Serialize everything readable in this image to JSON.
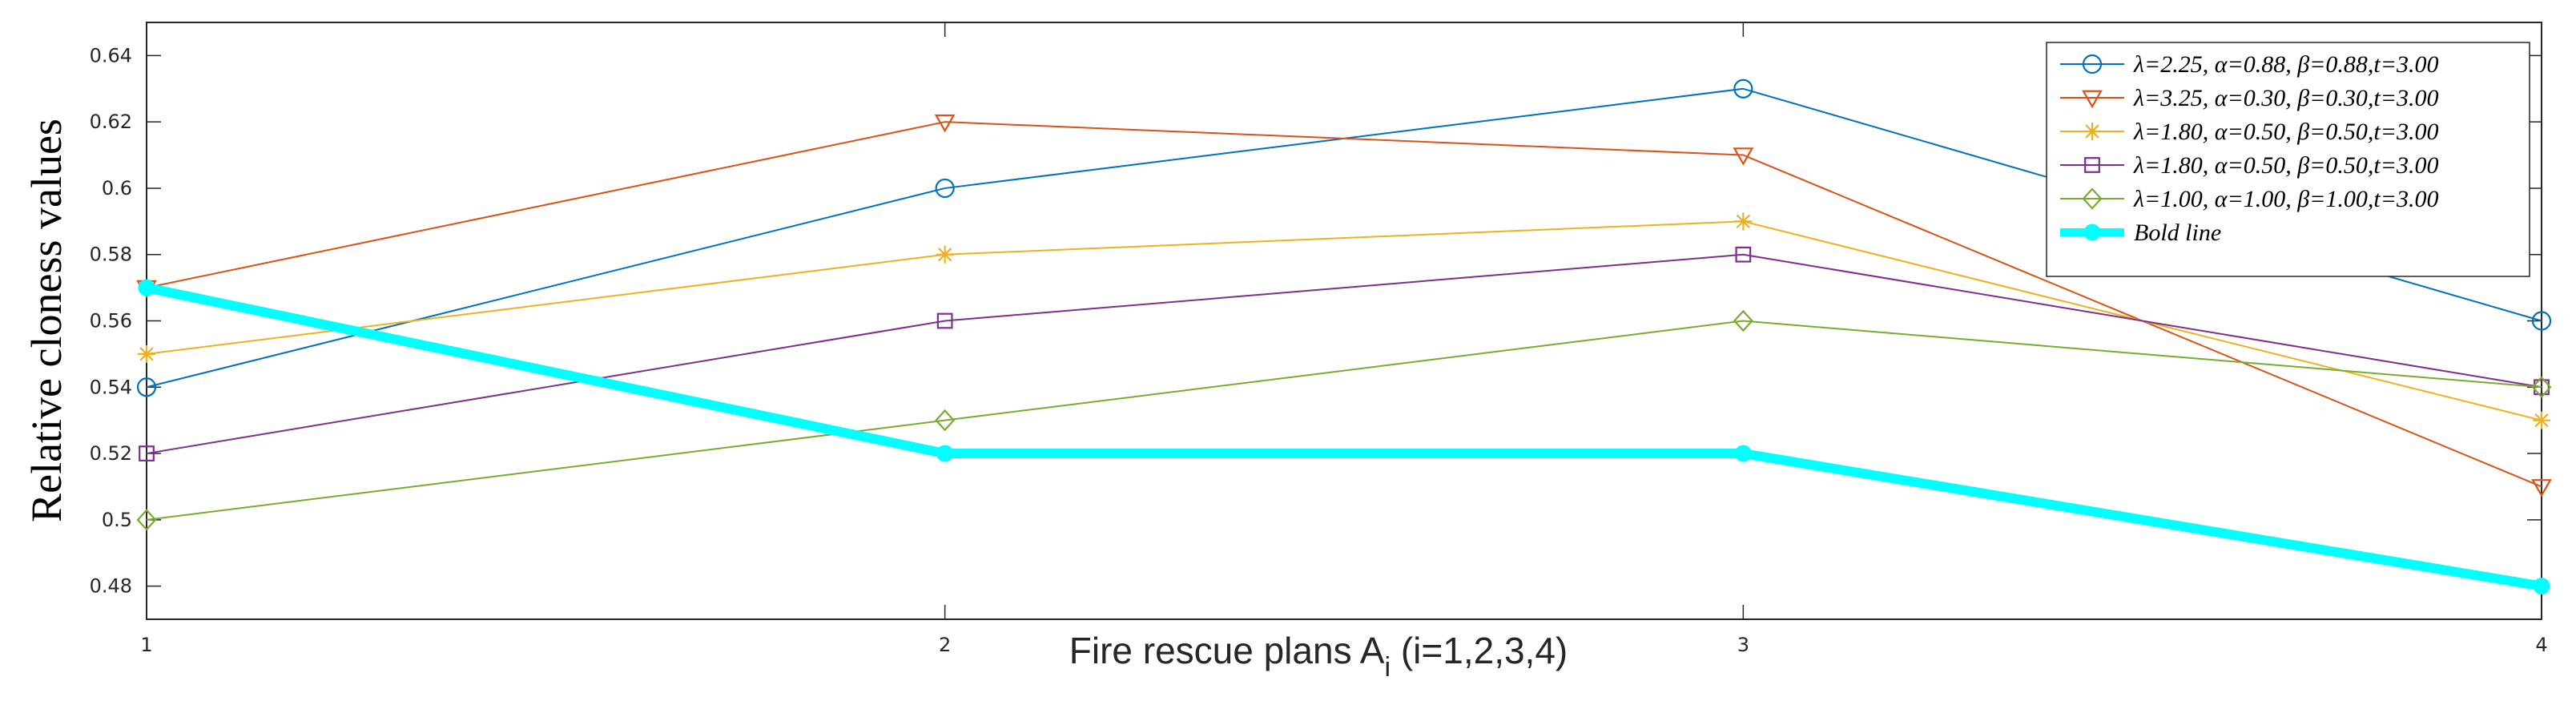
{
  "chart_data": {
    "type": "line",
    "x": [
      1,
      2,
      3,
      4
    ],
    "x_tick_labels": [
      "1",
      "2",
      "3",
      "4"
    ],
    "xlabel": "Fire rescue plans A",
    "xlabel_subscript": "i",
    "xlabel_suffix": " (i=1,2,3,4)",
    "ylabel": "Relative cloness values",
    "xlim": [
      1,
      4
    ],
    "ylim": [
      0.47,
      0.65
    ],
    "y_ticks": [
      0.48,
      0.5,
      0.52,
      0.54,
      0.56,
      0.58,
      0.6,
      0.62,
      0.64
    ],
    "y_tick_labels": [
      "0.48",
      "0.5",
      "0.52",
      "0.54",
      "0.56",
      "0.58",
      "0.6",
      "0.62",
      "0.64"
    ],
    "grid": false,
    "legend_position": "top-right",
    "series": [
      {
        "name": "λ=2.25, α=0.88, β=0.88,t=3.00",
        "values": [
          0.54,
          0.6,
          0.63,
          0.56
        ],
        "color": "#0072BD",
        "marker": "circle",
        "width": 2
      },
      {
        "name": "λ=3.25, α=0.30, β=0.30,t=3.00",
        "values": [
          0.57,
          0.62,
          0.61,
          0.51
        ],
        "color": "#D95319",
        "marker": "triangle-down",
        "width": 2
      },
      {
        "name": "λ=1.80, α=0.50, β=0.50,t=3.00",
        "values": [
          0.55,
          0.58,
          0.59,
          0.53
        ],
        "color": "#EDB120",
        "marker": "asterisk",
        "width": 2
      },
      {
        "name": "λ=1.80, α=0.50, β=0.50,t=3.00",
        "values": [
          0.52,
          0.56,
          0.58,
          0.54
        ],
        "color": "#7E2F8E",
        "marker": "square",
        "width": 2
      },
      {
        "name": "λ=1.00, α=1.00, β=1.00,t=3.00",
        "values": [
          0.5,
          0.53,
          0.56,
          0.54
        ],
        "color": "#77AC30",
        "marker": "diamond",
        "width": 2
      },
      {
        "name": "Bold line",
        "values": [
          0.57,
          0.52,
          0.52,
          0.48
        ],
        "color": "#00FFFF",
        "marker": "dot",
        "width": 12
      }
    ]
  }
}
